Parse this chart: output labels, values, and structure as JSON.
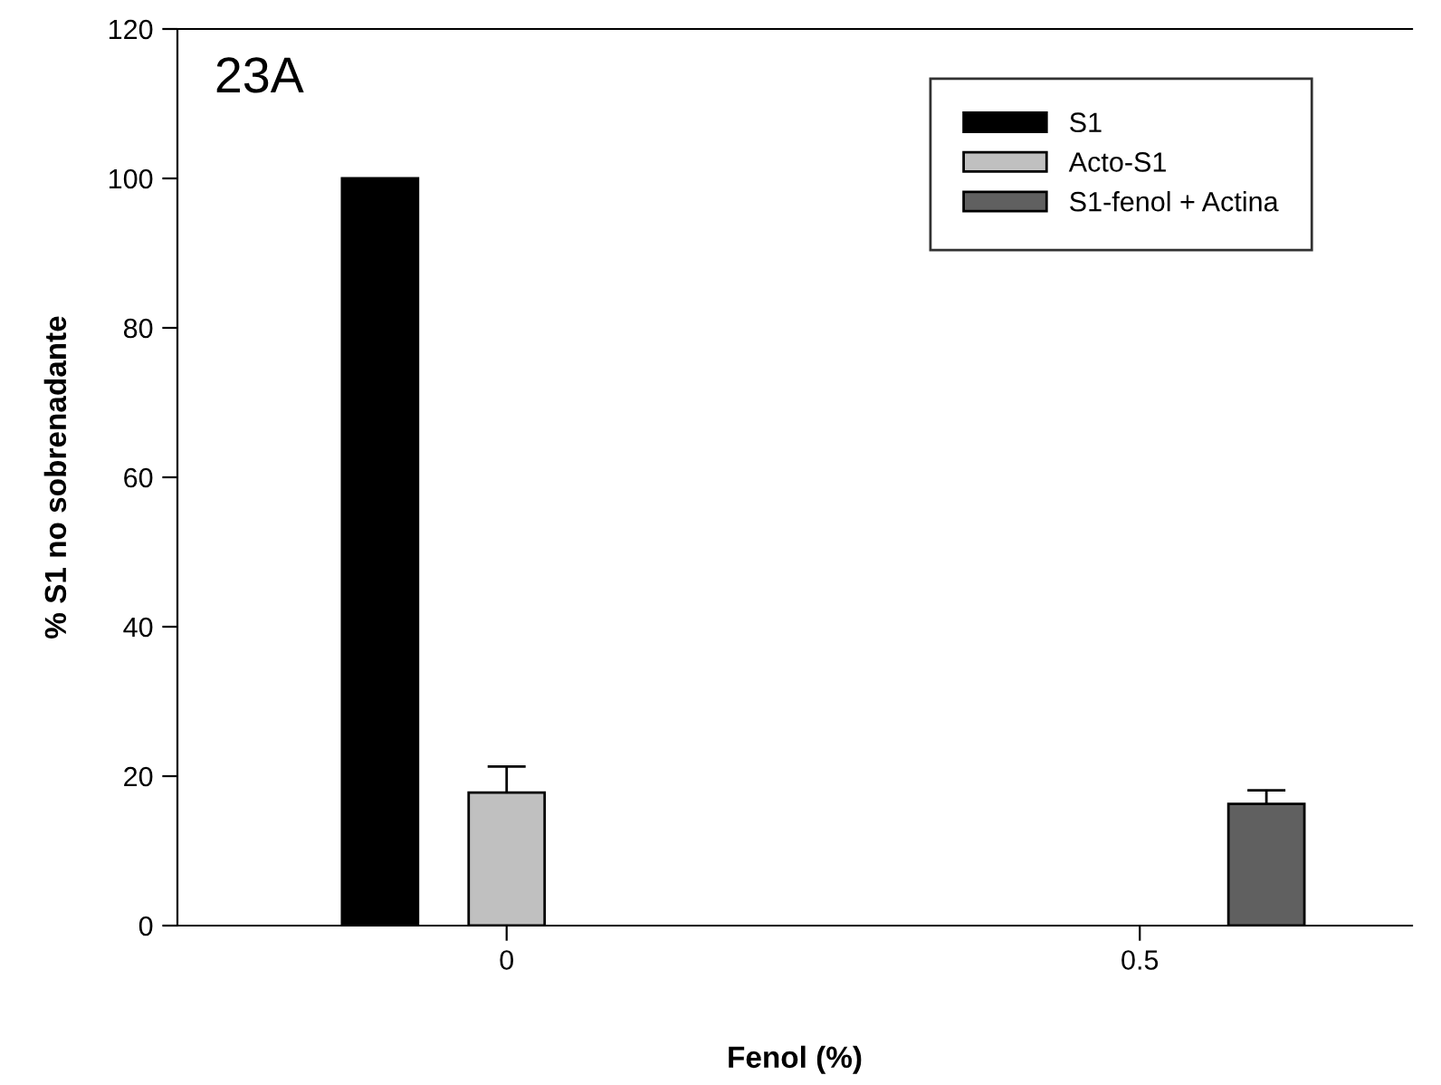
{
  "chart_data": {
    "type": "bar",
    "xlabel": "Fenol (%)",
    "ylabel": "% S1 no sobrenadante",
    "categories": [
      "0",
      "0.5"
    ],
    "series": [
      {
        "name": "S1",
        "color": "#000000",
        "values": [
          100,
          null
        ]
      },
      {
        "name": "Acto-S1",
        "color": "#c0c0c0",
        "values": [
          17.8,
          null
        ],
        "errors": [
          [
            17.8,
            21.3
          ],
          null
        ]
      },
      {
        "name": "S1-fenol + Actina",
        "color": "#606060",
        "values": [
          null,
          16.3
        ],
        "errors": [
          null,
          [
            16.3,
            18.1
          ]
        ]
      }
    ],
    "ylim": [
      0,
      120
    ],
    "yticks": [
      0,
      20,
      40,
      60,
      80,
      100,
      120
    ],
    "annotations": [
      "23A"
    ],
    "legend": "top right",
    "grid": false
  }
}
